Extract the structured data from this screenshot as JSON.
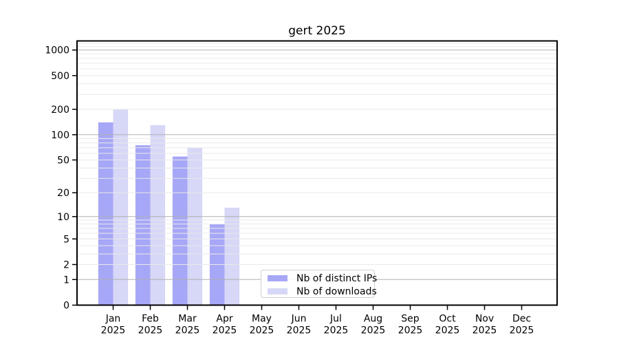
{
  "chart_data": {
    "type": "bar",
    "title": "gert 2025",
    "categories": [
      "Jan 2025",
      "Feb 2025",
      "Mar 2025",
      "Apr 2025",
      "May 2025",
      "Jun 2025",
      "Jul 2025",
      "Aug 2025",
      "Sep 2025",
      "Oct 2025",
      "Nov 2025",
      "Dec 2025"
    ],
    "series": [
      {
        "name": "Nb of distinct IPs",
        "color": "#a7a7f7",
        "values": [
          140,
          75,
          55,
          8,
          0,
          0,
          0,
          0,
          0,
          0,
          0,
          0
        ]
      },
      {
        "name": "Nb of downloads",
        "color": "#d7d7f7",
        "values": [
          200,
          130,
          70,
          13,
          0,
          0,
          0,
          0,
          0,
          0,
          0,
          0
        ]
      }
    ],
    "xlabel": "",
    "ylabel": "",
    "yscale": "log1p",
    "ylim": [
      0,
      1280
    ],
    "yticks": [
      0,
      1,
      2,
      5,
      10,
      20,
      50,
      100,
      200,
      500,
      1000
    ],
    "major_gridline_values": [
      1,
      10,
      100,
      1000
    ],
    "grid": {
      "on": true,
      "major_color": "#b0b0b0",
      "minor_color": "#e9e9e9",
      "drawn_above_bars": true
    },
    "legend": {
      "position": "lower-center",
      "entries": [
        "Nb of distinct IPs",
        "Nb of downloads"
      ]
    },
    "axis_color": "#000000",
    "background_color": "#ffffff"
  }
}
